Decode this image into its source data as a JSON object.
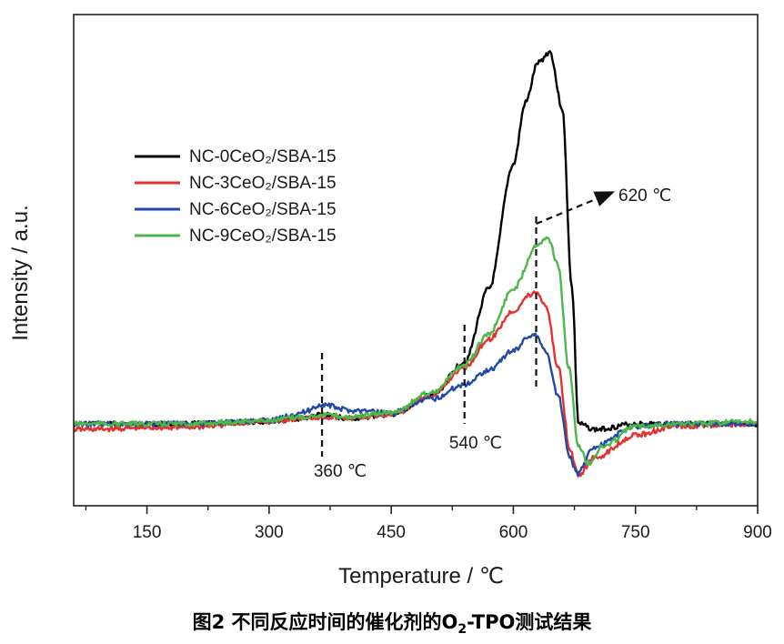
{
  "chart_data": {
    "type": "line",
    "title": "",
    "xlabel": "Temperature / ℃",
    "ylabel": "Intensity / a.u.",
    "xlim": [
      60,
      900
    ],
    "ylim": [
      -0.4,
      3.3
    ],
    "y_ticks_shown": false,
    "x_ticks": [
      150,
      300,
      450,
      600,
      750,
      900
    ],
    "x_tick_labels": [
      "150",
      "300",
      "450",
      "600",
      "750",
      "900"
    ],
    "legend_position": "upper-left",
    "series": [
      {
        "name": "NC-0CeO₂/SBA-15",
        "color": "#000000",
        "x": [
          60,
          200,
          300,
          340,
          365,
          400,
          450,
          500,
          540,
          570,
          600,
          615,
          630,
          645,
          660,
          672,
          680,
          700,
          750,
          800,
          900
        ],
        "y": [
          0.0,
          0.0,
          0.02,
          0.05,
          0.08,
          0.05,
          0.08,
          0.25,
          0.55,
          1.2,
          2.3,
          2.85,
          3.2,
          3.3,
          2.8,
          1.2,
          0.0,
          -0.05,
          0.0,
          0.0,
          0.0
        ]
      },
      {
        "name": "NC-3CeO₂/SBA-15",
        "color": "#e8312f",
        "x": [
          60,
          200,
          300,
          340,
          365,
          400,
          450,
          500,
          540,
          570,
          600,
          620,
          628,
          640,
          655,
          670,
          680,
          700,
          750,
          800,
          900
        ],
        "y": [
          -0.05,
          -0.03,
          0.02,
          0.05,
          0.06,
          0.05,
          0.08,
          0.25,
          0.5,
          0.75,
          1.0,
          1.14,
          1.17,
          1.05,
          0.5,
          -0.25,
          -0.45,
          -0.3,
          -0.1,
          -0.02,
          0.0
        ]
      },
      {
        "name": "NC-6CeO₂/SBA-15",
        "color": "#2349a8",
        "x": [
          60,
          200,
          300,
          340,
          365,
          400,
          450,
          500,
          540,
          570,
          600,
          620,
          625,
          640,
          655,
          670,
          678,
          700,
          750,
          800,
          900
        ],
        "y": [
          0.0,
          0.0,
          0.03,
          0.1,
          0.17,
          0.12,
          0.1,
          0.22,
          0.35,
          0.48,
          0.65,
          0.78,
          0.8,
          0.65,
          0.25,
          -0.3,
          -0.45,
          -0.2,
          -0.02,
          0.0,
          0.0
        ]
      },
      {
        "name": "NC-9CeO₂/SBA-15",
        "color": "#4db84a",
        "x": [
          60,
          200,
          300,
          340,
          365,
          400,
          450,
          500,
          540,
          570,
          600,
          630,
          643,
          655,
          668,
          680,
          692,
          710,
          750,
          800,
          900
        ],
        "y": [
          0.0,
          0.0,
          0.03,
          0.06,
          0.08,
          0.06,
          0.1,
          0.28,
          0.52,
          0.8,
          1.2,
          1.6,
          1.65,
          1.4,
          0.5,
          -0.2,
          -0.35,
          -0.2,
          -0.02,
          0.0,
          0.02
        ]
      }
    ],
    "annotations": [
      {
        "text": "360 ℃",
        "x": 365
      },
      {
        "text": "540 ℃",
        "x": 540
      },
      {
        "text": "620 ℃",
        "x": 628
      }
    ]
  },
  "caption": {
    "prefix": "图2 不同反应时间的催化剂的O",
    "subscript": "2",
    "suffix": "-TPO测试结果"
  }
}
